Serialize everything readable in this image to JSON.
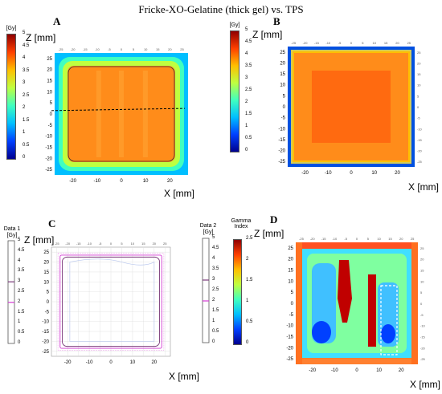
{
  "figure": {
    "title": "Fricke-XO-Gelatine (thick gel) vs. TPS",
    "panels": {
      "A": {
        "label": "A",
        "zlabel": "Z [mm]",
        "xlabel": "X [mm]",
        "cb_unit": "[Gy]",
        "cb_ticks": [
          "5",
          "4.5",
          "4",
          "3.5",
          "3",
          "2.5",
          "2",
          "1.5",
          "1",
          "0.5",
          "0"
        ]
      },
      "B": {
        "label": "B",
        "zlabel": "Z [mm]",
        "xlabel": "X [mm]",
        "cb_unit": "[Gy]",
        "cb_ticks": [
          "5",
          "4.5",
          "4",
          "3.5",
          "3",
          "2.5",
          "2",
          "1.5",
          "1",
          "0.5",
          "0"
        ]
      },
      "C": {
        "label": "C",
        "zlabel": "Z [mm]",
        "xlabel": "X [mm]",
        "cb1_title": "Data 1",
        "cb1_unit": "[Gy]",
        "cb2_title": "Data 2",
        "cb2_unit": "[Gy]",
        "cb_ticks": [
          "5",
          "4.5",
          "4",
          "3.5",
          "3",
          "2.5",
          "2",
          "1.5",
          "1",
          "0.5",
          "0"
        ]
      },
      "D": {
        "label": "D",
        "zlabel": "Z [mm]",
        "xlabel": "X [mm]",
        "cb_title": "Gamma Index",
        "cb_ticks": [
          "2.5",
          "2",
          "1.5",
          "1",
          "0.5",
          "0"
        ]
      }
    },
    "ticks": {
      "z": [
        "25",
        "20",
        "15",
        "10",
        "5",
        "0",
        "-5",
        "-10",
        "-15",
        "-20",
        "-25"
      ],
      "x_bottom": [
        "-20",
        "-10",
        "0",
        "10",
        "20"
      ],
      "x_top": [
        "-25",
        "-20",
        "-15",
        "-10",
        "-5",
        "0",
        "5",
        "10",
        "15",
        "20",
        "25"
      ]
    },
    "colorscale": [
      "#00008f",
      "#0040ff",
      "#00bfff",
      "#40ffbf",
      "#bfff40",
      "#ffbf00",
      "#ff4000",
      "#8f0000"
    ],
    "mono_colors": [
      "#ffffff",
      "#7a3a7a",
      "#d33ad3"
    ]
  }
}
